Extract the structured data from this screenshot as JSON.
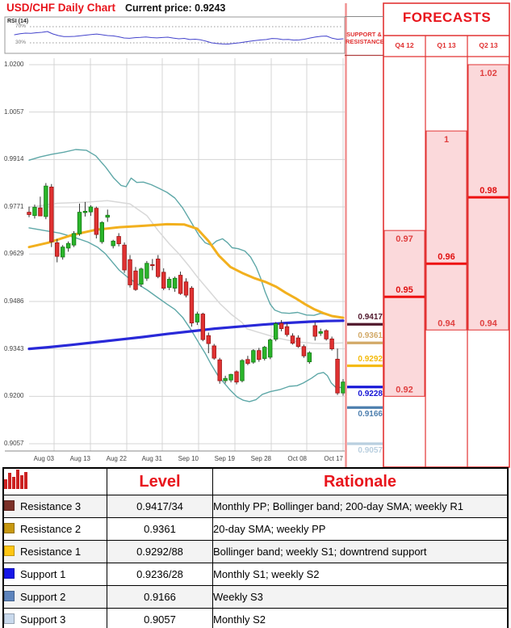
{
  "header": {
    "title": "USD/CHF Daily Chart",
    "current_price_label": "Current price:",
    "current_price": "0.9243"
  },
  "rsi": {
    "label": "RSI (14)",
    "upper_label": "70%",
    "lower_label": "30%",
    "upper_level": 70,
    "lower_level": 30,
    "values": [
      50,
      52.5,
      54,
      53.5,
      55,
      56,
      58,
      52,
      48,
      45.5,
      45.5,
      46,
      47.5,
      49,
      50.5,
      51.8,
      50,
      48,
      47.3,
      45,
      42,
      41.3,
      42.8,
      43.5,
      44.5,
      43,
      42.2,
      43.3,
      44,
      41.8,
      40,
      41,
      38.2,
      39,
      37.5,
      34,
      30,
      28.3,
      27.3,
      27,
      28.5,
      30,
      32,
      34,
      35.8,
      37.2,
      38.3,
      40.8,
      40.2,
      38,
      38.6,
      36.8,
      37.2,
      39,
      42,
      44.5,
      46.2,
      46.8,
      41.5,
      38.8,
      40
    ]
  },
  "chart_data": {
    "type": "candlestick",
    "title": "USD/CHF Daily Chart",
    "x_labels": [
      "Aug 03",
      "Aug 13",
      "Aug 22",
      "Aug 31",
      "Sep 10",
      "Sep 19",
      "Sep 28",
      "Oct 08",
      "Oct 17"
    ],
    "y_ticks": [
      1.02,
      1.0057,
      0.9914,
      0.9771,
      0.9629,
      0.9486,
      0.9343,
      0.92,
      0.9057
    ],
    "ylim": [
      0.9057,
      1.02
    ],
    "candles_ohlc": [
      [
        0.9755,
        0.9772,
        0.974,
        0.9748
      ],
      [
        0.9745,
        0.9778,
        0.9736,
        0.977
      ],
      [
        0.9768,
        0.9802,
        0.975,
        0.9744
      ],
      [
        0.9742,
        0.9843,
        0.9734,
        0.9834
      ],
      [
        0.9831,
        0.984,
        0.965,
        0.9666
      ],
      [
        0.9663,
        0.9674,
        0.9604,
        0.9622
      ],
      [
        0.962,
        0.9656,
        0.9612,
        0.965
      ],
      [
        0.9647,
        0.9667,
        0.9636,
        0.9661
      ],
      [
        0.9656,
        0.9698,
        0.965,
        0.9691
      ],
      [
        0.969,
        0.9781,
        0.9684,
        0.9755
      ],
      [
        0.9754,
        0.9786,
        0.9742,
        0.9758
      ],
      [
        0.9756,
        0.9776,
        0.9744,
        0.9771
      ],
      [
        0.9767,
        0.9772,
        0.9676,
        0.9688
      ],
      [
        0.9666,
        0.9728,
        0.966,
        0.9724
      ],
      [
        0.974,
        0.9763,
        0.9726,
        0.9746
      ],
      [
        0.9654,
        0.9672,
        0.9646,
        0.9668
      ],
      [
        0.9682,
        0.9692,
        0.9652,
        0.966
      ],
      [
        0.9656,
        0.9664,
        0.9572,
        0.9581
      ],
      [
        0.9612,
        0.9626,
        0.9528,
        0.9536
      ],
      [
        0.9578,
        0.959,
        0.9518,
        0.9522
      ],
      [
        0.9538,
        0.9588,
        0.953,
        0.9584
      ],
      [
        0.9556,
        0.9608,
        0.9548,
        0.9601
      ],
      [
        0.9597,
        0.9614,
        0.958,
        0.9594
      ],
      [
        0.9614,
        0.9626,
        0.9556,
        0.9561
      ],
      [
        0.9574,
        0.9586,
        0.952,
        0.9526
      ],
      [
        0.9528,
        0.956,
        0.952,
        0.9553
      ],
      [
        0.9526,
        0.9561,
        0.9515,
        0.9556
      ],
      [
        0.9565,
        0.9576,
        0.9506,
        0.951
      ],
      [
        0.9545,
        0.9556,
        0.9498,
        0.9505
      ],
      [
        0.9526,
        0.9532,
        0.941,
        0.9421
      ],
      [
        0.9424,
        0.9455,
        0.9415,
        0.9448
      ],
      [
        0.9448,
        0.9452,
        0.9366,
        0.9371
      ],
      [
        0.9383,
        0.9392,
        0.933,
        0.9359
      ],
      [
        0.9352,
        0.9358,
        0.931,
        0.9315
      ],
      [
        0.931,
        0.9316,
        0.9238,
        0.9247
      ],
      [
        0.9247,
        0.9262,
        0.9239,
        0.9254
      ],
      [
        0.9249,
        0.9268,
        0.9242,
        0.9266
      ],
      [
        0.9274,
        0.9278,
        0.9236,
        0.9243
      ],
      [
        0.9247,
        0.9312,
        0.9242,
        0.9308
      ],
      [
        0.9311,
        0.9322,
        0.9294,
        0.9299
      ],
      [
        0.9303,
        0.9342,
        0.9298,
        0.9338
      ],
      [
        0.9338,
        0.9346,
        0.9304,
        0.9311
      ],
      [
        0.9314,
        0.9352,
        0.9308,
        0.9348
      ],
      [
        0.9318,
        0.9374,
        0.9312,
        0.937
      ],
      [
        0.9372,
        0.9424,
        0.9366,
        0.9419
      ],
      [
        0.942,
        0.943,
        0.9396,
        0.9404
      ],
      [
        0.941,
        0.9421,
        0.938,
        0.9386
      ],
      [
        0.9382,
        0.939,
        0.9356,
        0.936
      ],
      [
        0.9376,
        0.9384,
        0.9346,
        0.935
      ],
      [
        0.935,
        0.9356,
        0.9316,
        0.9322
      ],
      [
        0.9304,
        0.9336,
        0.9298,
        0.9331
      ],
      [
        0.9413,
        0.9424,
        0.9368,
        0.9381
      ],
      [
        0.939,
        0.9404,
        0.9382,
        0.9395
      ],
      [
        0.9398,
        0.9402,
        0.9368,
        0.9373
      ],
      [
        0.9373,
        0.938,
        0.9338,
        0.9343
      ],
      [
        0.9312,
        0.9344,
        0.9204,
        0.921
      ],
      [
        0.921,
        0.9252,
        0.9202,
        0.9243
      ]
    ],
    "overlays": {
      "sma200": [
        [
          0,
          0.9343
        ],
        [
          3.4,
          0.9348
        ],
        [
          7.6,
          0.9355
        ],
        [
          11.9,
          0.9363
        ],
        [
          16.1,
          0.9371
        ],
        [
          20.4,
          0.9379
        ],
        [
          24.6,
          0.9388
        ],
        [
          28.9,
          0.9396
        ],
        [
          33.1,
          0.9404
        ],
        [
          37.3,
          0.941
        ],
        [
          41.6,
          0.9416
        ],
        [
          45.8,
          0.9421
        ],
        [
          50.1,
          0.9425
        ],
        [
          52.9,
          0.9427
        ],
        [
          56,
          0.9428
        ]
      ],
      "sma20": [
        [
          0,
          0.965
        ],
        [
          3.4,
          0.9663
        ],
        [
          7.6,
          0.9686
        ],
        [
          11.9,
          0.9702
        ],
        [
          16.1,
          0.971
        ],
        [
          20.4,
          0.9714
        ],
        [
          24.6,
          0.9719
        ],
        [
          27.7,
          0.9718
        ],
        [
          30,
          0.9705
        ],
        [
          32,
          0.9668
        ],
        [
          33.8,
          0.9625
        ],
        [
          35.9,
          0.959
        ],
        [
          38,
          0.9572
        ],
        [
          40.2,
          0.9556
        ],
        [
          42.3,
          0.9544
        ],
        [
          44.1,
          0.953
        ],
        [
          45.8,
          0.9512
        ],
        [
          47.5,
          0.9496
        ],
        [
          49.2,
          0.9478
        ],
        [
          50.9,
          0.9462
        ],
        [
          52.6,
          0.945
        ],
        [
          54,
          0.9442
        ],
        [
          56,
          0.9437
        ]
      ],
      "boll_upper": [
        [
          0,
          0.9912
        ],
        [
          2,
          0.9922
        ],
        [
          4.1,
          0.993
        ],
        [
          6.2,
          0.9936
        ],
        [
          8.3,
          0.9944
        ],
        [
          10.2,
          0.9942
        ],
        [
          11.9,
          0.9925
        ],
        [
          13.7,
          0.989
        ],
        [
          15.1,
          0.9858
        ],
        [
          16.4,
          0.9836
        ],
        [
          17.3,
          0.9832
        ],
        [
          18.2,
          0.9858
        ],
        [
          19.2,
          0.9845
        ],
        [
          20.4,
          0.9846
        ],
        [
          21.8,
          0.9838
        ],
        [
          23.2,
          0.9827
        ],
        [
          24.6,
          0.9815
        ],
        [
          26,
          0.9798
        ],
        [
          27.4,
          0.9768
        ],
        [
          28.9,
          0.9725
        ],
        [
          30.3,
          0.9685
        ],
        [
          31.4,
          0.9663
        ],
        [
          32.5,
          0.9655
        ],
        [
          33.4,
          0.9668
        ],
        [
          34.5,
          0.9675
        ],
        [
          35.4,
          0.9663
        ],
        [
          36.2,
          0.9648
        ],
        [
          37.3,
          0.9645
        ],
        [
          38.5,
          0.9638
        ],
        [
          39.5,
          0.962
        ],
        [
          40.5,
          0.959
        ],
        [
          41.3,
          0.9556
        ],
        [
          42.1,
          0.9515
        ],
        [
          43,
          0.9478
        ],
        [
          43.8,
          0.946
        ],
        [
          45,
          0.9452
        ],
        [
          46.4,
          0.945
        ],
        [
          47.9,
          0.9453
        ],
        [
          49.5,
          0.9445
        ],
        [
          50.8,
          0.9444
        ],
        [
          52,
          0.945
        ],
        [
          53.2,
          0.9446
        ],
        [
          54.3,
          0.944
        ],
        [
          56,
          0.9436
        ]
      ],
      "boll_lower": [
        [
          0,
          0.9708
        ],
        [
          2.7,
          0.97
        ],
        [
          5.5,
          0.9692
        ],
        [
          8.3,
          0.9678
        ],
        [
          10.5,
          0.9665
        ],
        [
          12.2,
          0.965
        ],
        [
          13.6,
          0.963
        ],
        [
          14.7,
          0.9608
        ],
        [
          16.1,
          0.958
        ],
        [
          17.5,
          0.956
        ],
        [
          19.2,
          0.954
        ],
        [
          21.1,
          0.952
        ],
        [
          22.9,
          0.9498
        ],
        [
          24.6,
          0.9478
        ],
        [
          26,
          0.9462
        ],
        [
          27.4,
          0.9438
        ],
        [
          28.9,
          0.94
        ],
        [
          30.3,
          0.936
        ],
        [
          31.4,
          0.933
        ],
        [
          32.5,
          0.9295
        ],
        [
          33.7,
          0.9262
        ],
        [
          34.8,
          0.924
        ],
        [
          35.9,
          0.9218
        ],
        [
          37.1,
          0.9198
        ],
        [
          38.2,
          0.9188
        ],
        [
          39.3,
          0.9184
        ],
        [
          40.5,
          0.919
        ],
        [
          41.6,
          0.9206
        ],
        [
          43,
          0.9214
        ],
        [
          44.7,
          0.922
        ],
        [
          46.4,
          0.923
        ],
        [
          47.8,
          0.9232
        ],
        [
          48.9,
          0.924
        ],
        [
          50.4,
          0.9255
        ],
        [
          51.5,
          0.9268
        ],
        [
          52.5,
          0.9272
        ],
        [
          53.2,
          0.9262
        ],
        [
          53.9,
          0.924
        ],
        [
          54.6,
          0.9228
        ],
        [
          56,
          0.9226
        ]
      ],
      "sma_gray": [
        [
          0,
          0.977
        ],
        [
          5,
          0.9782
        ],
        [
          10,
          0.9785
        ],
        [
          14,
          0.979
        ],
        [
          18,
          0.978
        ],
        [
          21,
          0.9745
        ],
        [
          23,
          0.97
        ],
        [
          25,
          0.966
        ],
        [
          26.7,
          0.963
        ],
        [
          28.6,
          0.9591
        ],
        [
          30,
          0.956
        ],
        [
          32,
          0.952
        ],
        [
          34,
          0.948
        ],
        [
          36,
          0.9448
        ],
        [
          38,
          0.9422
        ],
        [
          38.8,
          0.9404
        ],
        [
          40.5,
          0.9395
        ],
        [
          42.5,
          0.9385
        ],
        [
          44.5,
          0.9375
        ],
        [
          46.5,
          0.9368
        ],
        [
          48.5,
          0.9363
        ],
        [
          50.5,
          0.936
        ],
        [
          52.5,
          0.9359
        ],
        [
          56,
          0.9361
        ]
      ]
    }
  },
  "sr_panel": {
    "line1": "SUPPORT &",
    "line2": "RESISTANCE",
    "levels": [
      {
        "label": "0.9417",
        "price": 0.9417,
        "color": "#50182c",
        "side": "above",
        "bold": true
      },
      {
        "label": "0.9361",
        "price": 0.9361,
        "color": "#d2a967",
        "side": "above",
        "bold": false
      },
      {
        "label": "0.9292",
        "price": 0.9292,
        "color": "#f4ba0b",
        "side": "above",
        "bold": true
      },
      {
        "label": "0.9228",
        "price": 0.9228,
        "color": "#1313d6",
        "side": "below",
        "bold": true
      },
      {
        "label": "0.9166",
        "price": 0.9166,
        "color": "#4d7fae",
        "side": "below",
        "bold": true
      },
      {
        "label": "0.9057",
        "price": 0.9057,
        "color": "#b9cfdf",
        "side": "below",
        "bold": false
      }
    ]
  },
  "forecasts": {
    "title": "FORECASTS",
    "columns": [
      {
        "label": "Q4 12",
        "high": 0.97,
        "mid": 0.95,
        "low": 0.92,
        "high_label": "0.97",
        "mid_label": "0.95",
        "low_label": "0.92"
      },
      {
        "label": "Q1 13",
        "high": 1.0,
        "mid": 0.96,
        "low": 0.94,
        "high_label": "1",
        "mid_label": "0.96",
        "low_label": "0.94"
      },
      {
        "label": "Q2 13",
        "high": 1.02,
        "mid": 0.98,
        "low": 0.94,
        "high_label": "1.02",
        "mid_label": "0.98",
        "low_label": "0.94"
      }
    ]
  },
  "table": {
    "header": {
      "level": "Level",
      "rationale": "Rationale"
    },
    "rows": [
      {
        "swatch": "#7b3028",
        "label": "Resistance 3",
        "level": "0.9417/34",
        "rationale": "Monthly PP; Bollinger band; 200-day SMA; weekly R1"
      },
      {
        "swatch": "#c79810",
        "label": "Resistance 2",
        "level": "0.9361",
        "rationale": "20-day SMA; weekly PP"
      },
      {
        "swatch": "#ffc613",
        "label": "Resistance 1",
        "level": "0.9292/88",
        "rationale": "Bollinger band; weekly S1; downtrend support"
      },
      {
        "swatch": "#1616e8",
        "label": "Support 1",
        "level": "0.9236/28",
        "rationale": "Monthly S1; weekly S2"
      },
      {
        "swatch": "#5d84bd",
        "label": "Support 2",
        "level": "0.9166",
        "rationale": "Weekly S3"
      },
      {
        "swatch": "#c9d9ec",
        "label": "Support 3",
        "level": "0.9057",
        "rationale": "Monthly S2"
      }
    ]
  },
  "colors": {
    "accent_red": "#e8151c",
    "forecast_fill": "#fbd9db",
    "forecast_border": "#e23333",
    "forecast_mid_line": "#ee1111",
    "candle_up": "#2ab52a",
    "candle_down": "#e03232",
    "bollinger": "#5fa8a8",
    "sma20": "#f2b01e",
    "sma200": "#2929d8",
    "sma_gray": "#d8d8d8",
    "rsi_line": "#4444cc",
    "panel_divider": "#f08f8f"
  }
}
